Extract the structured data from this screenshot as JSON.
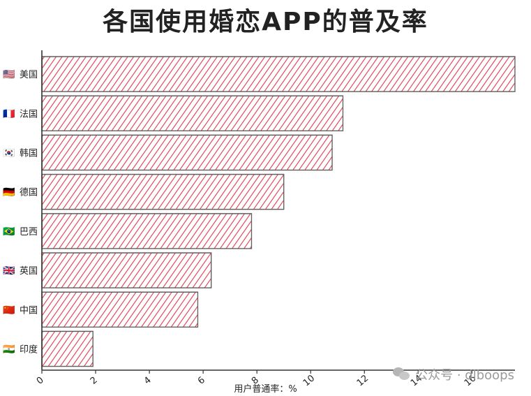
{
  "chart_data": {
    "type": "bar",
    "orientation": "horizontal",
    "title": "各国使用婚恋APP的普及率",
    "xlabel": "用户普通率：%",
    "ylabel": "",
    "xlim": [
      0,
      17.6
    ],
    "xticks": [
      0,
      2,
      4,
      6,
      8,
      10,
      12,
      14,
      16
    ],
    "categories": [
      "美国",
      "法国",
      "韩国",
      "德国",
      "巴西",
      "英国",
      "中国",
      "印度"
    ],
    "flags": [
      "🇺🇸",
      "🇫🇷",
      "🇰🇷",
      "🇩🇪",
      "🇧🇷",
      "🇬🇧",
      "🇨🇳",
      "🇮🇳"
    ],
    "values": [
      17.6,
      11.2,
      10.8,
      9.0,
      7.8,
      6.3,
      5.8,
      1.9
    ],
    "bar_color": "#e23a4e",
    "bar_fill_style": "hatched",
    "grid": false,
    "legend": "none"
  },
  "watermark": "公众号 · dlboops"
}
